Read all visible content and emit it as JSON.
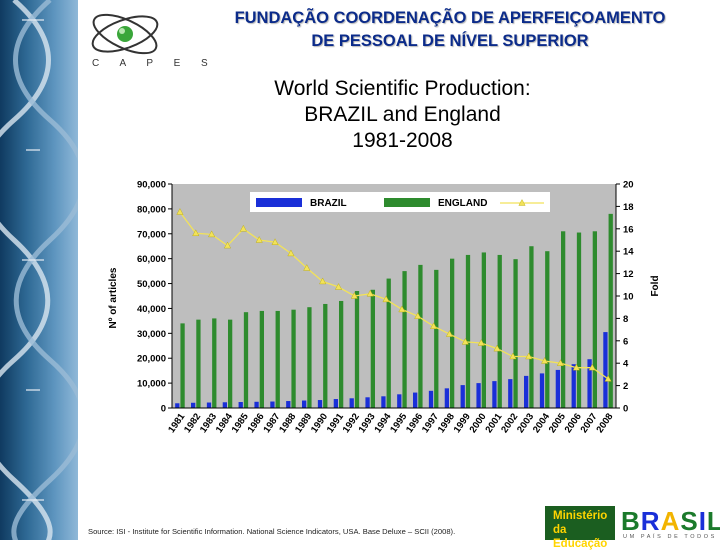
{
  "header": {
    "org_line1": "FUNDAÇÃO COORDENAÇÃO DE APERFEIÇOAMENTO",
    "org_line2": "DE PESSOAL DE NÍVEL SUPERIOR",
    "logo_text": "C A P E S"
  },
  "slide": {
    "title_line1": "World Scientific Production:",
    "title_line2": "BRAZIL and England",
    "title_line3": "1981-2008"
  },
  "footer": {
    "source": "Source: ISI - Institute for Scientific Information. National Science Indicators, USA. Base Deluxe – SCII (2008)."
  },
  "ministry": {
    "line1": "Ministério",
    "line2": "da Educação",
    "brand": "BRASIL",
    "tagline": "UM PAÍS DE TODOS"
  },
  "colors": {
    "brazil": "#1a2fd8",
    "england": "#2e8b2e",
    "fold": "#f2e25a",
    "plot_bg": "#bebebe",
    "title_blue": "#0b2b8a"
  },
  "chart_data": {
    "type": "bar",
    "categories": [
      "1981",
      "1982",
      "1983",
      "1984",
      "1985",
      "1986",
      "1987",
      "1988",
      "1989",
      "1990",
      "1991",
      "1992",
      "1993",
      "1994",
      "1995",
      "1996",
      "1997",
      "1998",
      "1999",
      "2000",
      "2001",
      "2002",
      "2003",
      "2004",
      "2005",
      "2006",
      "2007",
      "2008"
    ],
    "series": [
      {
        "name": "BRAZIL",
        "type": "bar",
        "axis": "left",
        "values": [
          1900,
          2100,
          2200,
          2300,
          2400,
          2500,
          2600,
          2800,
          3000,
          3200,
          3600,
          3900,
          4300,
          4700,
          5500,
          6200,
          6900,
          7900,
          9200,
          10000,
          10800,
          11600,
          12900,
          13900,
          15300,
          17600,
          19600,
          30500
        ]
      },
      {
        "name": "ENGLAND",
        "type": "bar",
        "axis": "left",
        "values": [
          34000,
          35500,
          36000,
          35500,
          38500,
          39000,
          39000,
          39500,
          40500,
          41800,
          43000,
          47000,
          47500,
          52000,
          55000,
          57500,
          55500,
          60000,
          61500,
          62500,
          61500,
          59800,
          65000,
          63000,
          71000,
          70500,
          71000,
          78000
        ]
      },
      {
        "name": "",
        "type": "line",
        "axis": "right",
        "values": [
          17.5,
          15.6,
          15.5,
          14.5,
          16,
          15,
          14.8,
          13.8,
          12.5,
          11.3,
          10.8,
          10,
          10.2,
          9.7,
          8.8,
          8.2,
          7.3,
          6.6,
          5.9,
          5.8,
          5.3,
          4.6,
          4.6,
          4.2,
          4,
          3.6,
          3.6,
          2.6
        ]
      }
    ],
    "ylabel": "Nº of articles",
    "y2label": "Fold",
    "ylim": [
      0,
      90000
    ],
    "y2lim": [
      0,
      20
    ],
    "yticks": [
      "0",
      "10,000",
      "20,000",
      "30,000",
      "40,000",
      "50,000",
      "60,000",
      "70,000",
      "80,000",
      "90,000"
    ],
    "y2ticks": [
      "0",
      "2",
      "4",
      "6",
      "8",
      "10",
      "12",
      "14",
      "16",
      "18",
      "20"
    ],
    "legend_position": "top",
    "grid": false
  }
}
